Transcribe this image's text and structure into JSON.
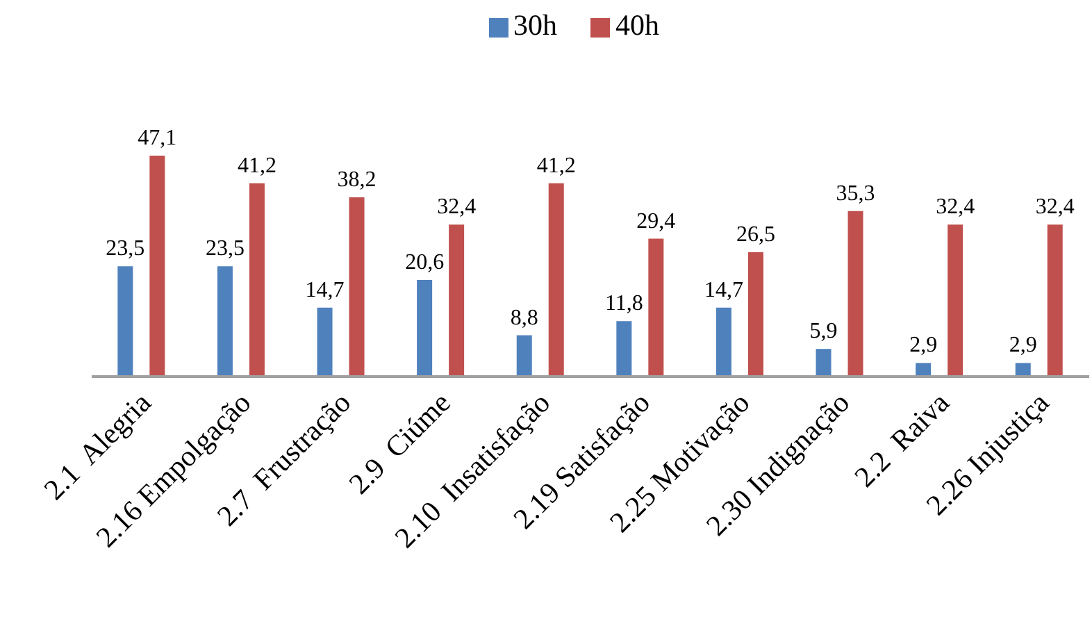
{
  "chart_data": {
    "type": "bar",
    "categories": [
      "2.1  Alegria",
      "2.16 Empolgação",
      "2.7  Frustração",
      "2.9  Ciúme",
      "2.10  Insatisfação",
      "2.19 Satisfação",
      "2.25 Motivação",
      "2.30 Indignação",
      "2.2  Raiva",
      "2.26 Injustiça"
    ],
    "series": [
      {
        "name": "30h",
        "color": "#4f81bd",
        "values": [
          23.5,
          23.5,
          14.7,
          20.6,
          8.8,
          11.8,
          14.7,
          5.9,
          2.9,
          2.9
        ],
        "value_labels": [
          "23,5",
          "23,5",
          "14,7",
          "20,6",
          "8,8",
          "11,8",
          "14,7",
          "5,9",
          "2,9",
          "2,9"
        ]
      },
      {
        "name": "40h",
        "color": "#c0504d",
        "values": [
          47.1,
          41.2,
          38.2,
          32.4,
          41.2,
          29.4,
          26.5,
          35.3,
          32.4,
          32.4
        ],
        "value_labels": [
          "47,1",
          "41,2",
          "38,2",
          "32,4",
          "41,2",
          "29,4",
          "26,5",
          "35,3",
          "32,4",
          "32,4"
        ]
      }
    ],
    "legend": "top",
    "grid": false
  }
}
